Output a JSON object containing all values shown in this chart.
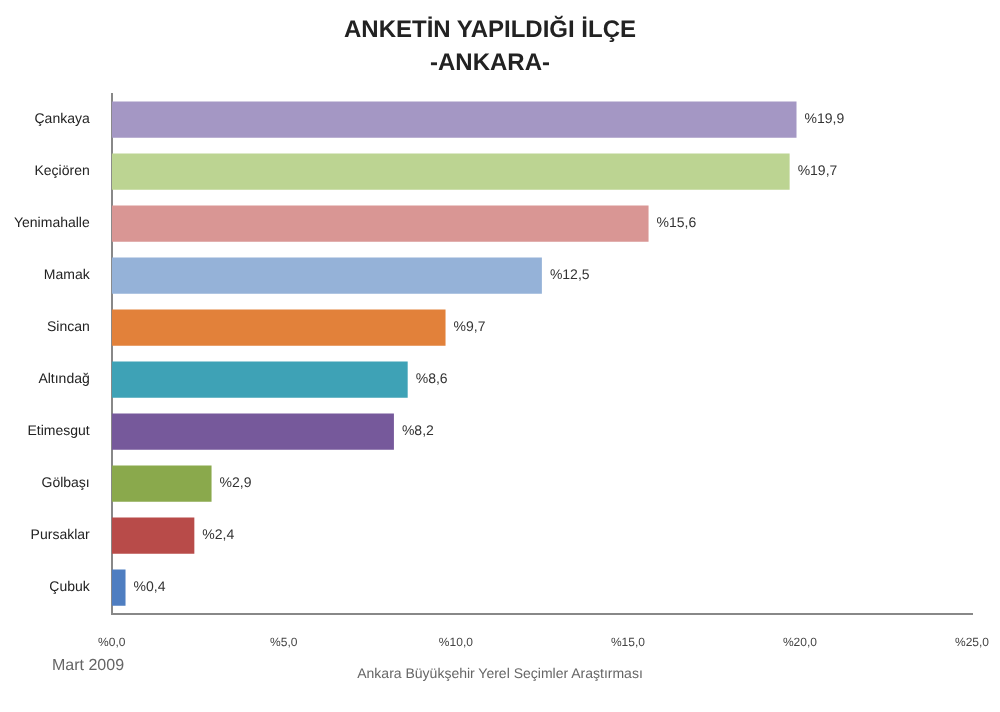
{
  "chart_data": {
    "type": "bar",
    "orientation": "horizontal",
    "title": "ANKETİN YAPILDIĞI İLÇE",
    "subtitle": "-ANKARA-",
    "categories": [
      "Çankaya",
      "Keçiören",
      "Yenimahalle",
      "Mamak",
      "Sincan",
      "Altındağ",
      "Etimesgut",
      "Gölbaşı",
      "Pursaklar",
      "Çubuk"
    ],
    "values": [
      19.9,
      19.7,
      15.6,
      12.5,
      9.7,
      8.6,
      8.2,
      2.9,
      2.4,
      0.4
    ],
    "value_labels": [
      "%19,9",
      "%19,7",
      "%15,6",
      "%12,5",
      "%9,7",
      "%8,6",
      "%8,2",
      "%2,9",
      "%2,4",
      "%0,4"
    ],
    "colors": [
      "#a497c4",
      "#bcd492",
      "#d99694",
      "#95b2d8",
      "#e2813a",
      "#3ea2b6",
      "#76599b",
      "#8aa94c",
      "#b84b49",
      "#4f7ec1"
    ],
    "xlim": [
      0,
      25
    ],
    "xticks": [
      {
        "value": 0,
        "label": "%0,0"
      },
      {
        "value": 5,
        "label": "%5,0"
      },
      {
        "value": 10,
        "label": "%10,0"
      },
      {
        "value": 15,
        "label": "%15,0"
      },
      {
        "value": 20,
        "label": "%20,0"
      },
      {
        "value": 25,
        "label": "%25,0"
      }
    ],
    "grid": false,
    "legend": false,
    "annotations": [
      "Mart 2009",
      "Ankara Büyükşehir Yerel Seçimler Araştırması"
    ]
  }
}
